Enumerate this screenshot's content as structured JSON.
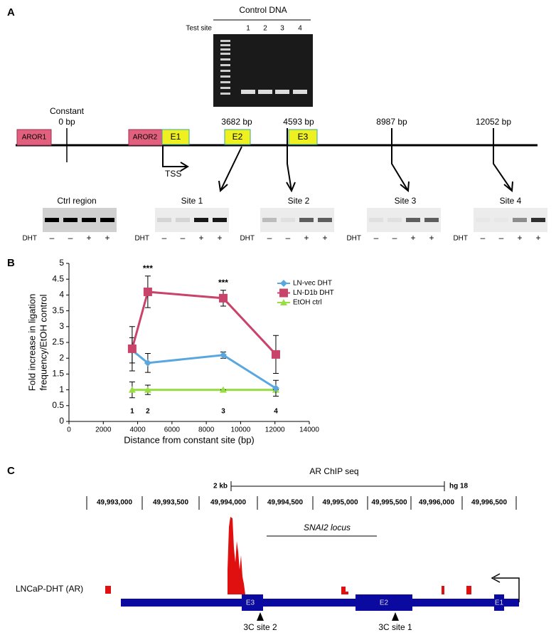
{
  "panel_a": {
    "label": "A",
    "control_dna": {
      "title": "Control DNA",
      "test_site": "Test site",
      "lanes": [
        "1",
        "2",
        "3",
        "4"
      ]
    },
    "map": {
      "constant": "Constant",
      "positions": [
        "0 bp",
        "3682 bp",
        "4593 bp",
        "8987 bp",
        "12052 bp"
      ],
      "boxes": [
        "AROR1",
        "AROR2",
        "E1",
        "E2",
        "E3"
      ],
      "tss": "TSS"
    },
    "gels": [
      {
        "title": "Ctrl region",
        "dht": "DHT",
        "treatments": [
          "–",
          "–",
          "+",
          "+"
        ]
      },
      {
        "title": "Site 1",
        "dht": "DHT",
        "treatments": [
          "–",
          "–",
          "+",
          "+"
        ]
      },
      {
        "title": "Site 2",
        "dht": "DHT",
        "treatments": [
          "–",
          "–",
          "+",
          "+"
        ]
      },
      {
        "title": "Site 3",
        "dht": "DHT",
        "treatments": [
          "–",
          "–",
          "+",
          "+"
        ]
      },
      {
        "title": "Site 4",
        "dht": "DHT",
        "treatments": [
          "–",
          "–",
          "+",
          "+"
        ]
      }
    ]
  },
  "panel_b": {
    "label": "B"
  },
  "chart_data": {
    "type": "line",
    "x_label": "Distance from constant site (bp)",
    "y_label": [
      "Fold increase in ligation",
      "frequency/EtOH control"
    ],
    "x": [
      3682,
      4593,
      8987,
      12052
    ],
    "xlim": [
      0,
      14000
    ],
    "xticks": [
      0,
      2000,
      4000,
      6000,
      8000,
      10000,
      12000,
      14000
    ],
    "ylim": [
      0,
      5
    ],
    "yticks": [
      0,
      0.5,
      1,
      1.5,
      2,
      2.5,
      3,
      3.5,
      4,
      4.5,
      5
    ],
    "series": [
      {
        "name": "LN-vec DHT",
        "color": "#5aa7e0",
        "marker": "diamond",
        "values": [
          2.25,
          1.85,
          2.1,
          1.05
        ],
        "errors": [
          0.4,
          0.3,
          0.1,
          0.25
        ]
      },
      {
        "name": "LN-D1b DHT",
        "color": "#c8446a",
        "marker": "square",
        "values": [
          2.3,
          4.1,
          3.9,
          2.12
        ],
        "errors": [
          0.7,
          0.5,
          0.25,
          0.6
        ]
      },
      {
        "name": "EtOH ctrl",
        "color": "#99dd44",
        "marker": "triangle",
        "values": [
          1,
          1,
          1,
          1
        ],
        "errors": [
          0.25,
          0.15,
          0,
          0
        ]
      }
    ],
    "point_labels": [
      "1",
      "2",
      "3",
      "4"
    ],
    "annotations": [
      {
        "index": 1,
        "text": "***"
      },
      {
        "index": 2,
        "text": "***"
      }
    ],
    "legend": "upper right"
  },
  "panel_c": {
    "label": "C",
    "title": "AR ChIP seq",
    "scale": "2 kb",
    "assembly": "hg 18",
    "coordinates": [
      "49,993,000",
      "49,993,500",
      "49,994,000",
      "49,994,500",
      "49,995,000",
      "49,995,500",
      "49,996,000",
      "49,996,500"
    ],
    "locus": "SNAI2 locus",
    "track": "LNCaP-DHT (AR)",
    "exons": [
      "E3",
      "E2",
      "E1"
    ],
    "sites": [
      "3C site 2",
      "3C site 1"
    ]
  }
}
